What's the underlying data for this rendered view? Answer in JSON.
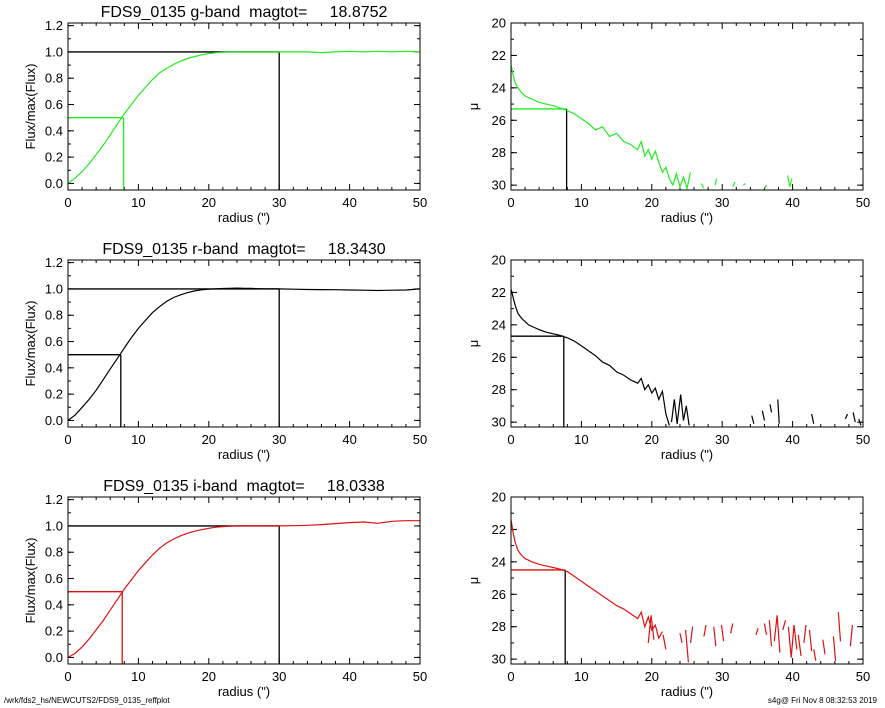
{
  "footer": {
    "left": "/wrk/fds2_hs/NEWCUTS2/FDS9_0135_reffplot",
    "right": "s4g@  Fri Nov  8 08:32:53 2019"
  },
  "colors": {
    "g": "#22ee22",
    "r": "#000000",
    "i": "#dd1111",
    "axis": "#000000"
  },
  "chart_data": [
    {
      "type": "line",
      "title": "FDS9_0135 g-band  magtot=     18.8752",
      "xlabel": "radius (\")",
      "ylabel": "Flux/max(Flux)",
      "xlim": [
        0,
        50
      ],
      "ylim": [
        -0.05,
        1.22
      ],
      "xticks": [
        "0",
        "10",
        "20",
        "30",
        "40",
        "50"
      ],
      "yticks": [
        "0.0",
        "0.2",
        "0.4",
        "0.6",
        "0.8",
        "1.0",
        "1.2"
      ],
      "color": "#22ee22",
      "x": [
        0,
        1,
        2,
        3,
        4,
        5,
        6,
        7,
        8,
        9,
        10,
        11,
        12,
        13,
        14,
        15,
        16,
        17,
        18,
        19,
        20,
        21,
        22,
        23,
        24,
        25,
        26,
        27,
        28,
        29,
        30,
        32,
        34,
        36,
        38,
        40,
        42,
        44,
        46,
        48,
        50
      ],
      "y": [
        0.0,
        0.04,
        0.09,
        0.15,
        0.22,
        0.29,
        0.37,
        0.45,
        0.53,
        0.6,
        0.67,
        0.73,
        0.79,
        0.84,
        0.875,
        0.905,
        0.93,
        0.95,
        0.965,
        0.978,
        0.988,
        0.994,
        0.998,
        1.0,
        1.0,
        1.0,
        1.0,
        1.0,
        1.0,
        1.0,
        1.0,
        1.0,
        1.0,
        0.995,
        1.0,
        1.005,
        1.0,
        1.005,
        1.0,
        1.005,
        1.0
      ],
      "half_light": {
        "r": 7.9,
        "f": 0.5
      },
      "total": {
        "r": 30,
        "f": 1.0
      }
    },
    {
      "type": "line",
      "title": "",
      "xlabel": "radius (\")",
      "ylabel": "μ",
      "xlim": [
        0,
        50
      ],
      "ylim": [
        30.3,
        20
      ],
      "y_inverted": true,
      "xticks": [
        "0",
        "10",
        "20",
        "30",
        "40",
        "50"
      ],
      "yticks": [
        "20",
        "22",
        "24",
        "26",
        "28",
        "30"
      ],
      "color": "#22ee22",
      "x": [
        0,
        0.3,
        0.6,
        1,
        1.5,
        2,
        2.5,
        3,
        4,
        5,
        6,
        7,
        8,
        9,
        10,
        11,
        12,
        13,
        14,
        15,
        16,
        17,
        18,
        18.5,
        19,
        19.5,
        20,
        20.5,
        21,
        21.5,
        22,
        22.5,
        23,
        23.5,
        24,
        24.5,
        25,
        25.5
      ],
      "y": [
        22.6,
        23.2,
        23.7,
        24.0,
        24.3,
        24.5,
        24.6,
        24.7,
        24.9,
        25.0,
        25.1,
        25.25,
        25.4,
        25.6,
        25.9,
        26.2,
        26.6,
        26.4,
        27.0,
        26.8,
        27.3,
        27.5,
        27.8,
        27.3,
        28.2,
        27.8,
        28.4,
        27.9,
        28.6,
        29.2,
        28.9,
        29.6,
        30.0,
        29.3,
        30.1,
        29.5,
        30.2,
        29.2
      ],
      "extra_segments": [
        [
          27,
          29.9,
          27.4,
          30.2
        ],
        [
          29,
          30.0,
          29.2,
          29.6
        ],
        [
          31.5,
          30.1,
          31.8,
          29.8
        ],
        [
          33,
          30.0,
          33.3,
          29.9
        ],
        [
          36,
          30.2,
          36.3,
          30.0
        ],
        [
          39.3,
          29.4,
          39.6,
          30.1
        ],
        [
          39.6,
          30.1,
          39.9,
          29.6
        ]
      ],
      "half_light": {
        "r": 7.9,
        "mu": 25.3
      }
    },
    {
      "type": "line",
      "title": "FDS9_0135 r-band  magtot=     18.3430",
      "xlabel": "radius (\")",
      "ylabel": "Flux/max(Flux)",
      "xlim": [
        0,
        50
      ],
      "ylim": [
        -0.05,
        1.22
      ],
      "xticks": [
        "0",
        "10",
        "20",
        "30",
        "40",
        "50"
      ],
      "yticks": [
        "0.0",
        "0.2",
        "0.4",
        "0.6",
        "0.8",
        "1.0",
        "1.2"
      ],
      "color": "#000000",
      "x": [
        0,
        1,
        2,
        3,
        4,
        5,
        6,
        7,
        8,
        9,
        10,
        11,
        12,
        13,
        14,
        15,
        16,
        17,
        18,
        19,
        20,
        21,
        22,
        23,
        24,
        25,
        26,
        27,
        28,
        29,
        30,
        32,
        34,
        36,
        38,
        40,
        42,
        44,
        46,
        48,
        50
      ],
      "y": [
        0.0,
        0.04,
        0.1,
        0.16,
        0.23,
        0.31,
        0.39,
        0.47,
        0.55,
        0.63,
        0.7,
        0.76,
        0.82,
        0.865,
        0.905,
        0.935,
        0.955,
        0.972,
        0.985,
        0.993,
        0.998,
        1.0,
        1.003,
        1.005,
        1.006,
        1.005,
        1.004,
        1.002,
        1.0,
        1.0,
        1.0,
        0.998,
        0.996,
        0.995,
        0.994,
        0.992,
        0.99,
        0.988,
        0.99,
        0.992,
        1.0
      ],
      "half_light": {
        "r": 7.5,
        "f": 0.5
      },
      "total": {
        "r": 30,
        "f": 1.0
      }
    },
    {
      "type": "line",
      "title": "",
      "xlabel": "radius (\")",
      "ylabel": "μ",
      "xlim": [
        0,
        50
      ],
      "ylim": [
        30.3,
        20
      ],
      "y_inverted": true,
      "xticks": [
        "0",
        "10",
        "20",
        "30",
        "40",
        "50"
      ],
      "yticks": [
        "20",
        "22",
        "24",
        "26",
        "28",
        "30"
      ],
      "color": "#000000",
      "x": [
        0,
        0.3,
        0.6,
        1,
        1.5,
        2,
        2.5,
        3,
        4,
        5,
        6,
        7,
        8,
        9,
        10,
        11,
        12,
        13,
        14,
        15,
        16,
        17,
        18,
        18.5,
        19,
        19.5,
        20,
        20.5,
        21,
        21.5,
        22,
        22.5
      ],
      "y": [
        21.8,
        22.3,
        22.8,
        23.3,
        23.6,
        23.8,
        24.0,
        24.1,
        24.3,
        24.45,
        24.55,
        24.65,
        24.8,
        25.0,
        25.3,
        25.6,
        25.9,
        26.3,
        26.5,
        26.9,
        27.1,
        27.4,
        27.6,
        27.3,
        28.0,
        27.7,
        28.2,
        27.9,
        28.6,
        28.1,
        29.5,
        30.2
      ],
      "extra_segments": [
        [
          22.8,
          30.0,
          23.2,
          28.6
        ],
        [
          23.2,
          28.6,
          23.6,
          30.1
        ],
        [
          23.6,
          30.1,
          24.1,
          28.3
        ],
        [
          24.1,
          28.3,
          24.5,
          29.9
        ],
        [
          24.5,
          29.9,
          24.9,
          29.0
        ],
        [
          24.9,
          29.0,
          25.3,
          30.2
        ],
        [
          34.2,
          29.6,
          34.5,
          30.1
        ],
        [
          35.7,
          29.3,
          36.0,
          29.9
        ],
        [
          36.8,
          28.9,
          37.0,
          29.4
        ],
        [
          37.9,
          28.6,
          38.1,
          30.1
        ],
        [
          42.7,
          29.5,
          43.0,
          30.1
        ],
        [
          47.5,
          29.8,
          47.8,
          29.5
        ],
        [
          48.6,
          29.4,
          48.9,
          30.0
        ],
        [
          49.4,
          29.8,
          49.7,
          30.2
        ]
      ],
      "half_light": {
        "r": 7.5,
        "mu": 24.7
      }
    },
    {
      "type": "line",
      "title": "FDS9_0135 i-band  magtot=     18.0338",
      "xlabel": "radius (\")",
      "ylabel": "Flux/max(Flux)",
      "xlim": [
        0,
        50
      ],
      "ylim": [
        -0.05,
        1.22
      ],
      "xticks": [
        "0",
        "10",
        "20",
        "30",
        "40",
        "50"
      ],
      "yticks": [
        "0.0",
        "0.2",
        "0.4",
        "0.6",
        "0.8",
        "1.0",
        "1.2"
      ],
      "color": "#dd1111",
      "x": [
        0,
        1,
        2,
        3,
        4,
        5,
        6,
        7,
        8,
        9,
        10,
        11,
        12,
        13,
        14,
        15,
        16,
        17,
        18,
        19,
        20,
        21,
        22,
        23,
        24,
        25,
        26,
        27,
        28,
        29,
        30,
        32,
        34,
        36,
        38,
        40,
        42,
        44,
        46,
        48,
        50
      ],
      "y": [
        0.0,
        0.03,
        0.08,
        0.14,
        0.21,
        0.28,
        0.36,
        0.44,
        0.52,
        0.59,
        0.66,
        0.72,
        0.78,
        0.83,
        0.87,
        0.9,
        0.925,
        0.945,
        0.96,
        0.972,
        0.982,
        0.99,
        0.995,
        0.998,
        1.0,
        1.0,
        1.0,
        1.0,
        1.0,
        1.0,
        1.0,
        1.002,
        1.005,
        1.01,
        1.018,
        1.025,
        1.03,
        1.02,
        1.035,
        1.04,
        1.04
      ],
      "half_light": {
        "r": 7.7,
        "f": 0.5
      },
      "total": {
        "r": 30,
        "f": 1.0
      }
    },
    {
      "type": "line",
      "title": "",
      "xlabel": "radius (\")",
      "ylabel": "μ",
      "xlim": [
        0,
        50
      ],
      "ylim": [
        30.3,
        20
      ],
      "y_inverted": true,
      "xticks": [
        "0",
        "10",
        "20",
        "30",
        "40",
        "50"
      ],
      "yticks": [
        "20",
        "22",
        "24",
        "26",
        "28",
        "30"
      ],
      "color": "#dd1111",
      "x": [
        0,
        0.3,
        0.6,
        1,
        1.5,
        2,
        2.5,
        3,
        4,
        5,
        6,
        7,
        8,
        9,
        10,
        11,
        12,
        13,
        14,
        15,
        16,
        17,
        18,
        18.5,
        19,
        19.5,
        20,
        20.5,
        21,
        21.5
      ],
      "y": [
        21.4,
        22.2,
        22.8,
        23.3,
        23.6,
        23.8,
        23.9,
        24.0,
        24.15,
        24.25,
        24.35,
        24.45,
        24.6,
        24.9,
        25.2,
        25.5,
        25.8,
        26.1,
        26.4,
        26.7,
        26.9,
        27.2,
        27.5,
        27.1,
        28.0,
        27.4,
        28.2,
        27.9,
        28.7,
        28.3
      ],
      "extra_segments": [
        [
          19.5,
          29.0,
          19.9,
          27.3
        ],
        [
          19.9,
          27.3,
          20.3,
          28.8
        ],
        [
          21.6,
          28.5,
          22.0,
          29.4
        ],
        [
          24.0,
          28.4,
          24.3,
          29.0
        ],
        [
          24.8,
          28.2,
          25.2,
          30.2
        ],
        [
          25.5,
          29.0,
          25.8,
          28.0
        ],
        [
          27.4,
          28.6,
          27.7,
          27.9
        ],
        [
          28.8,
          28.0,
          29.1,
          29.2
        ],
        [
          29.9,
          27.9,
          30.2,
          28.9
        ],
        [
          31.2,
          28.4,
          31.5,
          27.8
        ],
        [
          34.8,
          28.5,
          35.1,
          28.1
        ],
        [
          36.0,
          27.8,
          36.3,
          28.5
        ],
        [
          36.7,
          27.6,
          37.0,
          29.2
        ],
        [
          37.4,
          28.9,
          37.8,
          27.3
        ],
        [
          37.8,
          27.3,
          38.2,
          29.6
        ],
        [
          38.6,
          28.2,
          39.0,
          27.6
        ],
        [
          39.4,
          28.0,
          39.8,
          29.9
        ],
        [
          39.8,
          29.9,
          40.2,
          27.9
        ],
        [
          40.2,
          27.9,
          40.6,
          29.4
        ],
        [
          40.8,
          28.5,
          41.2,
          29.8
        ],
        [
          41.6,
          29.0,
          41.9,
          27.9
        ],
        [
          42.4,
          28.2,
          42.7,
          29.5
        ],
        [
          43.0,
          29.4,
          43.3,
          30.1
        ],
        [
          44.3,
          28.8,
          44.6,
          29.7
        ],
        [
          45.8,
          28.6,
          46.1,
          30.1
        ],
        [
          46.5,
          27.1,
          46.8,
          28.9
        ],
        [
          48.2,
          29.2,
          48.5,
          27.9
        ]
      ],
      "half_light": {
        "r": 7.7,
        "mu": 24.5
      }
    }
  ]
}
